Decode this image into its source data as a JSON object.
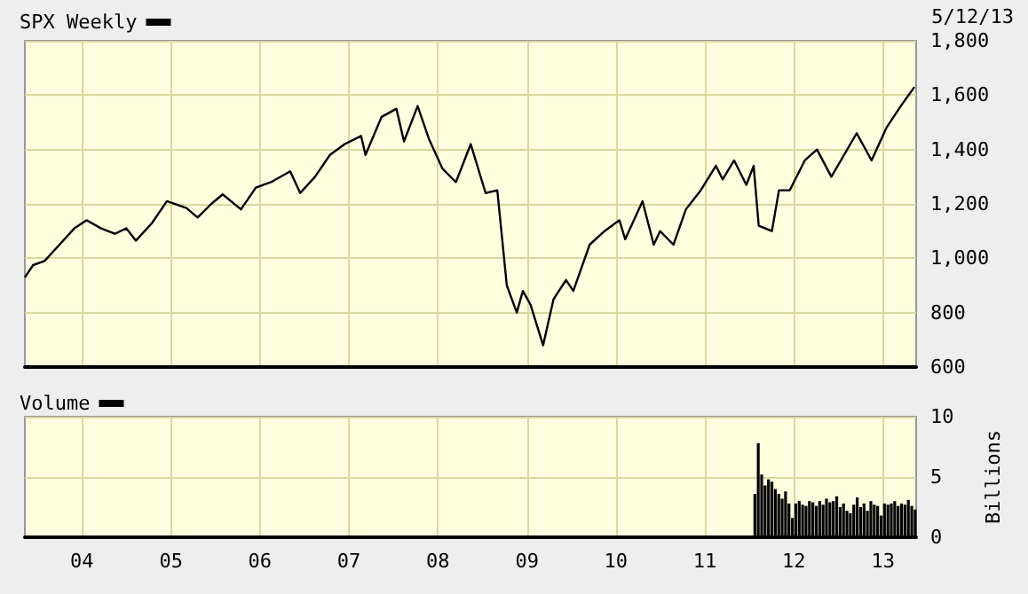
{
  "chart_data": [
    {
      "type": "line",
      "annotations": [
        "5/12/13"
      ],
      "legend": "top left",
      "grid": true,
      "tick_labels": "y",
      "marker": "none",
      "line_style": "solid",
      "xlim": [
        "2003-05-12",
        "2013-05-17"
      ],
      "xticks": [
        {
          "value": "2004",
          "label": null
        },
        {
          "value": "2005",
          "label": null
        },
        {
          "value": "2006",
          "label": null
        },
        {
          "value": "2007",
          "label": null
        },
        {
          "value": "2008",
          "label": null
        },
        {
          "value": "2009",
          "label": null
        },
        {
          "value": "2010",
          "label": null
        },
        {
          "value": "2011",
          "label": null
        },
        {
          "value": "2012",
          "label": null
        },
        {
          "value": "2013",
          "label": null
        }
      ],
      "ylim": [
        600,
        1800
      ],
      "yticks": [
        600,
        800,
        {
          "value": 1000,
          "label": "1,000"
        },
        {
          "value": 1200,
          "label": "1,200"
        },
        {
          "value": 1400,
          "label": "1,400"
        },
        {
          "value": 1600,
          "label": "1,600"
        },
        {
          "value": 1800,
          "label": "1,800"
        }
      ],
      "series": [
        {
          "name": "SPX Weekly",
          "color": "#000000",
          "x": [
            "2003-05-12",
            "2003-06-15",
            "2003-08-01",
            "2003-10-01",
            "2003-12-01",
            "2004-01-20",
            "2004-03-20",
            "2004-05-15",
            "2004-07-01",
            "2004-08-10",
            "2004-10-15",
            "2004-12-15",
            "2005-03-05",
            "2005-04-20",
            "2005-06-15",
            "2005-08-01",
            "2005-10-15",
            "2005-12-15",
            "2006-02-15",
            "2006-05-05",
            "2006-06-15",
            "2006-08-15",
            "2006-10-15",
            "2006-12-15",
            "2007-02-20",
            "2007-03-10",
            "2007-05-15",
            "2007-07-15",
            "2007-08-15",
            "2007-10-10",
            "2007-11-25",
            "2008-01-20",
            "2008-03-15",
            "2008-05-15",
            "2008-07-15",
            "2008-09-01",
            "2008-10-10",
            "2008-11-20",
            "2008-12-15",
            "2009-01-15",
            "2009-03-08",
            "2009-04-20",
            "2009-06-10",
            "2009-07-10",
            "2009-09-15",
            "2009-11-15",
            "2010-01-15",
            "2010-02-08",
            "2010-04-20",
            "2010-06-05",
            "2010-07-01",
            "2010-08-25",
            "2010-10-15",
            "2010-12-15",
            "2011-02-15",
            "2011-03-15",
            "2011-05-01",
            "2011-06-20",
            "2011-07-20",
            "2011-08-10",
            "2011-10-03",
            "2011-11-01",
            "2011-12-15",
            "2012-02-15",
            "2012-04-05",
            "2012-06-03",
            "2012-09-15",
            "2012-11-15",
            "2013-01-15",
            "2013-03-15",
            "2013-05-10"
          ],
          "values": [
            930,
            975,
            990,
            1050,
            1110,
            1140,
            1110,
            1090,
            1110,
            1065,
            1130,
            1210,
            1185,
            1150,
            1200,
            1235,
            1180,
            1260,
            1280,
            1320,
            1240,
            1300,
            1380,
            1420,
            1450,
            1380,
            1520,
            1550,
            1430,
            1560,
            1440,
            1330,
            1280,
            1420,
            1240,
            1250,
            900,
            800,
            880,
            830,
            680,
            850,
            920,
            880,
            1050,
            1100,
            1140,
            1070,
            1210,
            1050,
            1100,
            1050,
            1180,
            1250,
            1340,
            1290,
            1360,
            1270,
            1340,
            1120,
            1100,
            1250,
            1250,
            1360,
            1400,
            1300,
            1460,
            1360,
            1480,
            1560,
            1630
          ]
        }
      ]
    },
    {
      "type": "bar",
      "ylabel": "Billions",
      "legend": "top left",
      "grid": true,
      "xlim": [
        "2003-05-12",
        "2013-05-17"
      ],
      "xticks": [
        {
          "value": "2004",
          "label": "04"
        },
        {
          "value": "2005",
          "label": "05"
        },
        {
          "value": "2006",
          "label": "06"
        },
        {
          "value": "2007",
          "label": "07"
        },
        {
          "value": "2008",
          "label": "08"
        },
        {
          "value": "2009",
          "label": "09"
        },
        {
          "value": "2010",
          "label": "10"
        },
        {
          "value": "2011",
          "label": "11"
        },
        {
          "value": "2012",
          "label": "12"
        },
        {
          "value": "2013",
          "label": "13"
        }
      ],
      "ylim": [
        0,
        10
      ],
      "yticks": [
        0,
        5,
        10
      ],
      "series": [
        {
          "name": "Volume",
          "color": "#000000",
          "x": [
            "2011-07-25",
            "2011-08-08",
            "2011-08-22",
            "2011-09-05",
            "2011-09-19",
            "2011-10-03",
            "2011-10-17",
            "2011-10-31",
            "2011-11-14",
            "2011-11-28",
            "2011-12-12",
            "2011-12-26",
            "2012-01-09",
            "2012-01-23",
            "2012-02-06",
            "2012-02-20",
            "2012-03-05",
            "2012-03-19",
            "2012-04-02",
            "2012-04-16",
            "2012-04-30",
            "2012-05-14",
            "2012-05-28",
            "2012-06-11",
            "2012-06-25",
            "2012-07-09",
            "2012-07-23",
            "2012-08-06",
            "2012-08-20",
            "2012-09-03",
            "2012-09-17",
            "2012-10-01",
            "2012-10-15",
            "2012-10-29",
            "2012-11-12",
            "2012-11-26",
            "2012-12-10",
            "2012-12-24",
            "2013-01-07",
            "2013-01-21",
            "2013-02-04",
            "2013-02-18",
            "2013-03-04",
            "2013-03-18",
            "2013-04-01",
            "2013-04-15",
            "2013-04-29",
            "2013-05-13"
          ],
          "values": [
            3.6,
            7.8,
            5.2,
            4.3,
            4.8,
            4.6,
            4.0,
            3.6,
            3.2,
            3.8,
            2.8,
            1.6,
            2.8,
            3.0,
            2.7,
            2.6,
            3.0,
            2.9,
            2.6,
            3.0,
            2.7,
            3.2,
            2.9,
            3.0,
            3.4,
            2.5,
            2.8,
            2.2,
            2.0,
            2.7,
            3.3,
            2.5,
            2.8,
            2.2,
            3.0,
            2.7,
            2.6,
            1.8,
            2.8,
            2.7,
            2.8,
            3.0,
            2.6,
            2.8,
            2.7,
            3.1,
            2.6,
            2.3
          ]
        }
      ]
    }
  ]
}
